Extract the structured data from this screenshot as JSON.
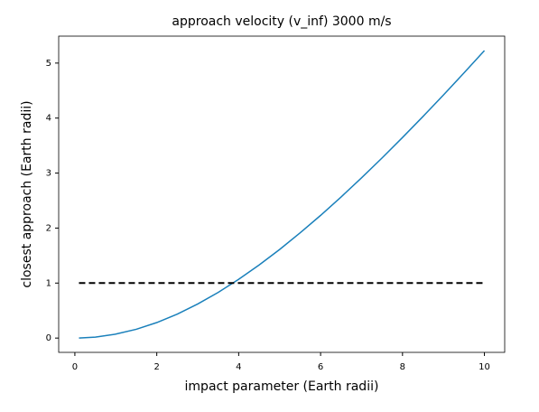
{
  "chart_data": {
    "type": "line",
    "title": "approach velocity (v_inf) 3000 m/s",
    "xlabel": "impact parameter (Earth radii)",
    "ylabel": "closest approach (Earth radii)",
    "series": [
      {
        "color": "#1a80bb",
        "linestyle": "solid",
        "x": [
          0.1,
          0.5,
          1,
          1.5,
          2,
          2.5,
          3,
          3.5,
          4,
          4.5,
          5,
          5.5,
          6,
          6.5,
          7,
          7.5,
          8,
          8.5,
          9,
          9.5,
          10
        ],
        "values": [
          0.0007,
          0.018,
          0.072,
          0.16,
          0.282,
          0.436,
          0.62,
          0.831,
          1.069,
          1.329,
          1.611,
          1.913,
          2.231,
          2.565,
          2.914,
          3.274,
          3.647,
          4.029,
          4.42,
          4.82,
          5.227
        ]
      },
      {
        "color": "#000000",
        "linestyle": "dashed",
        "x": [
          0.1,
          10
        ],
        "values": [
          1,
          1
        ]
      }
    ],
    "xlim": [
      -0.395,
      10.495
    ],
    "xticks": [
      0,
      2,
      4,
      6,
      8,
      10
    ],
    "ylim": [
      -0.26,
      5.49
    ],
    "yticks": [
      0,
      1,
      2,
      3,
      4,
      5
    ],
    "grid": false
  }
}
